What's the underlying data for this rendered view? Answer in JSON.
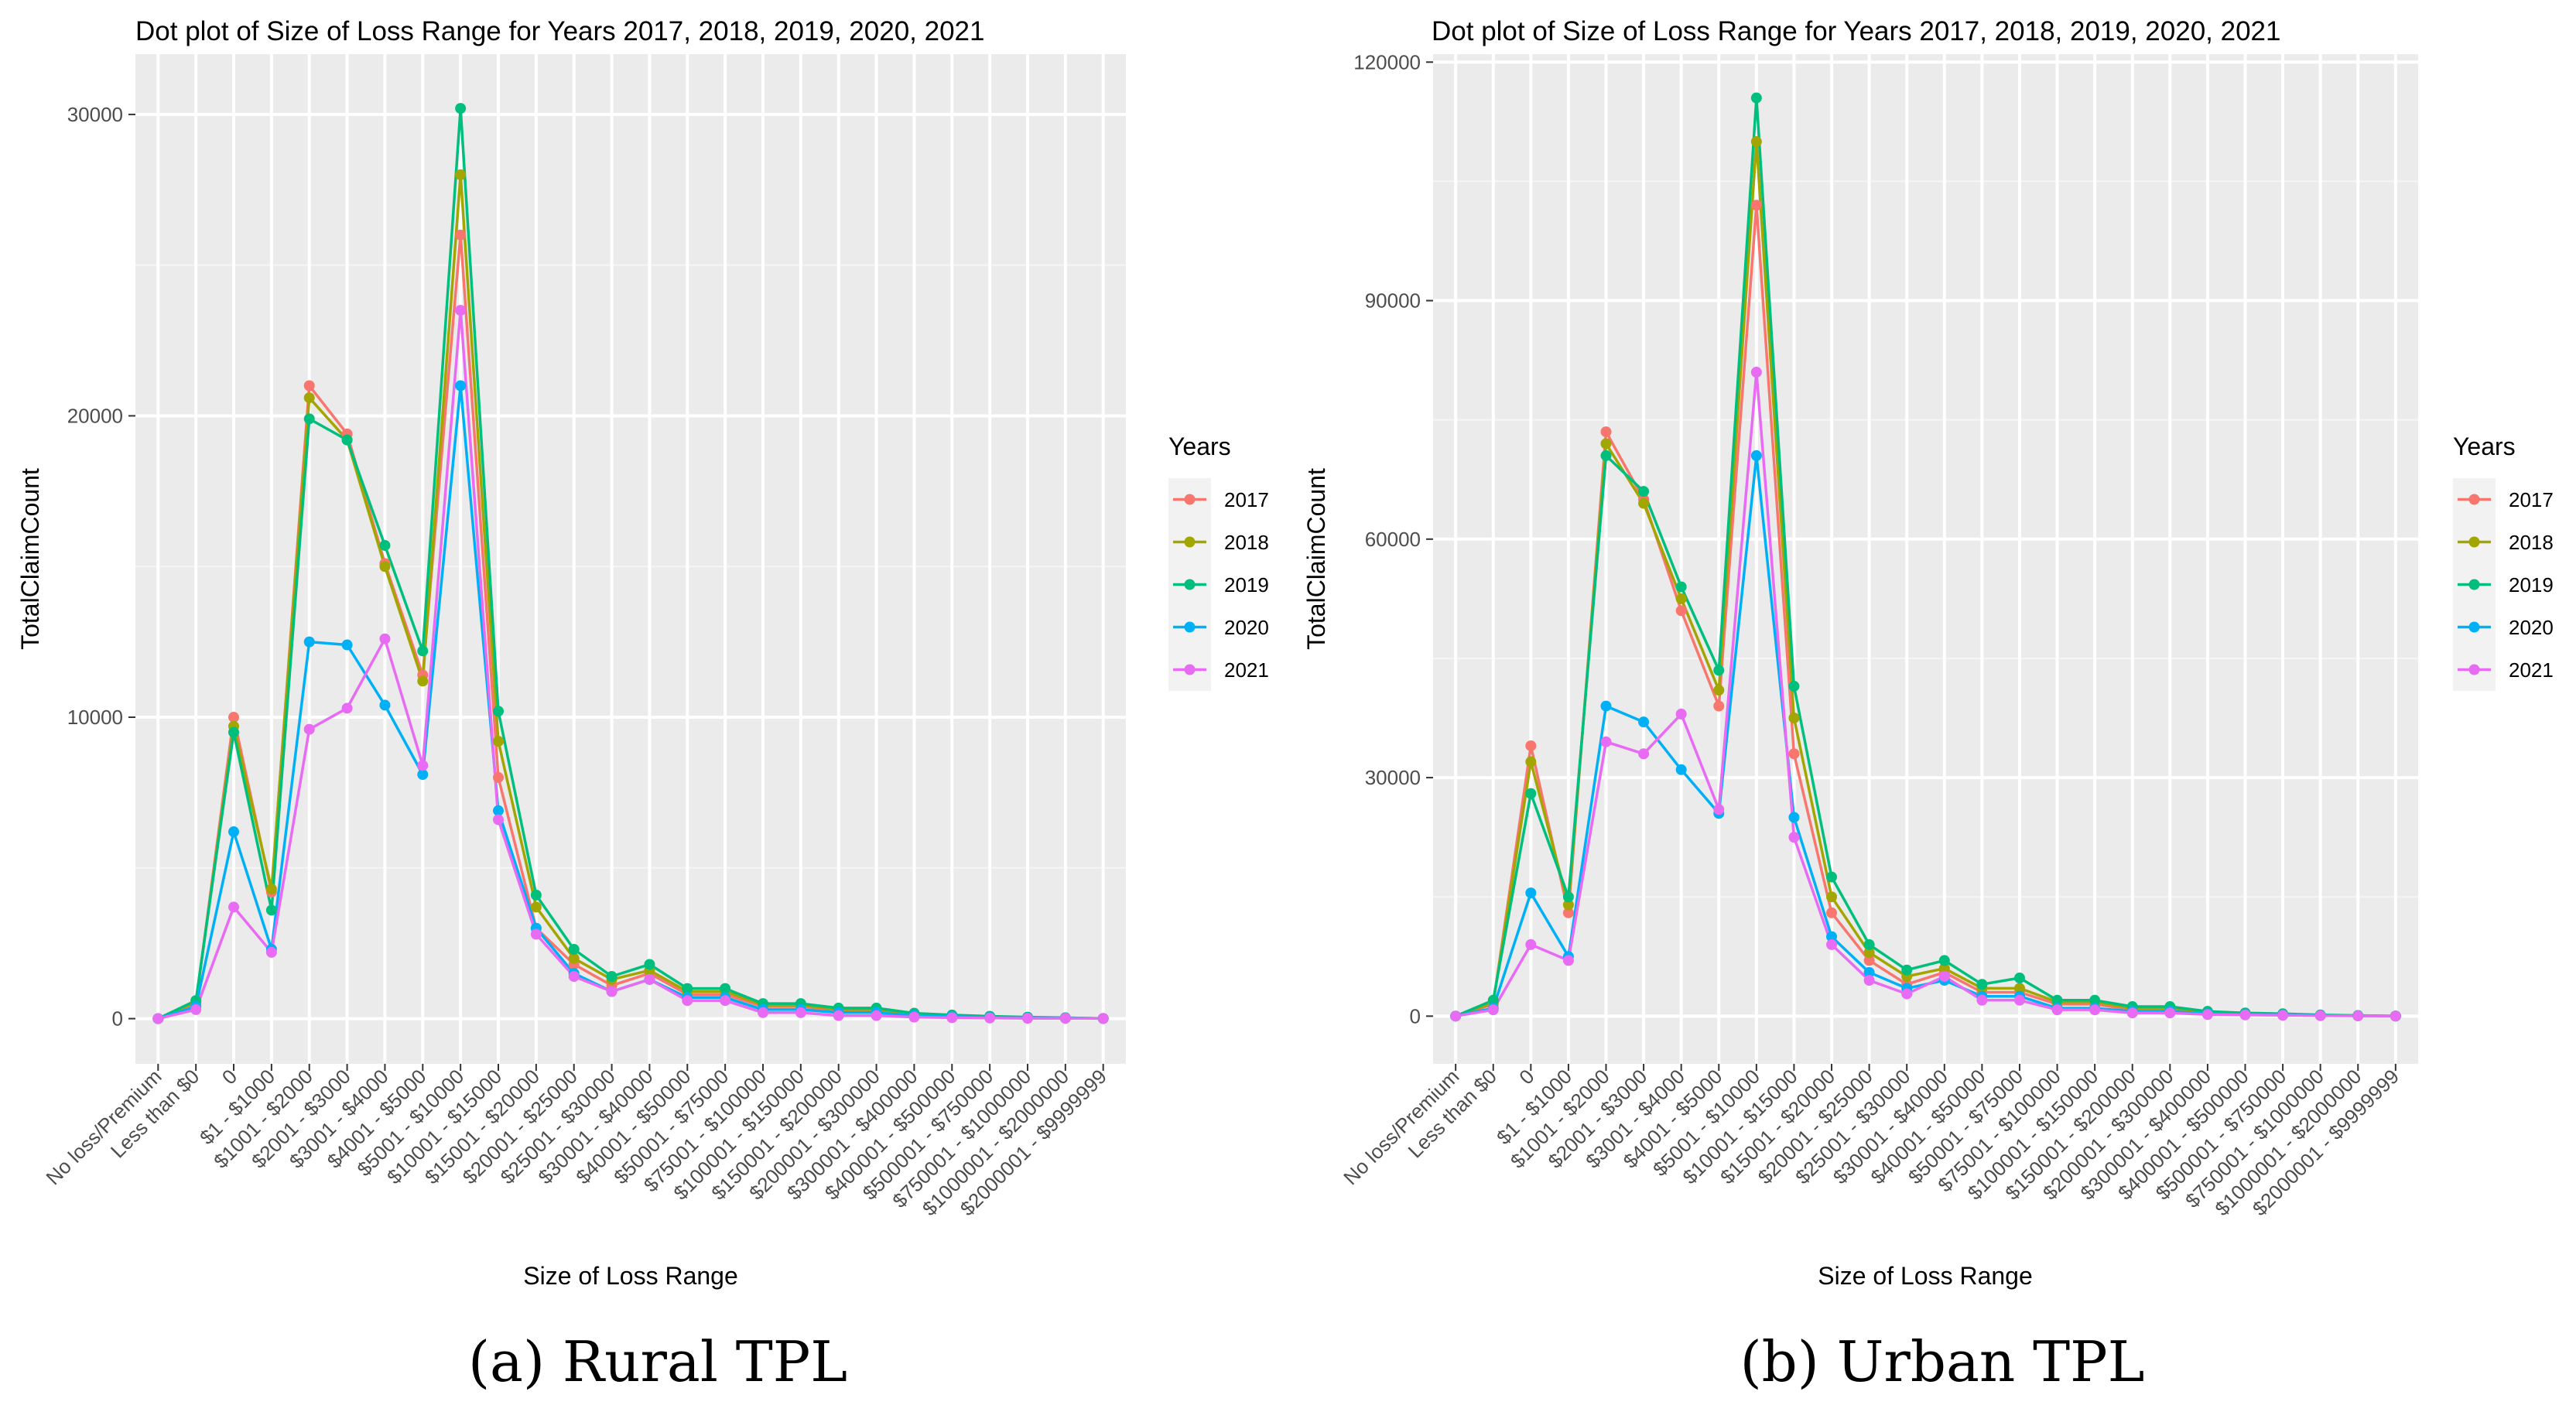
{
  "chart_data": [
    {
      "id": "rural",
      "type": "line",
      "title": "Dot plot of Size of Loss Range for Years 2017, 2018, 2019, 2020, 2021",
      "xlabel": "Size of Loss Range",
      "ylabel": "TotalClaimCount",
      "ylim": [
        -1500,
        32000
      ],
      "yticks": [
        0,
        10000,
        20000,
        30000
      ],
      "ytick_labels": [
        "0",
        "10000",
        "20000",
        "30000"
      ],
      "caption": "(a) Rural TPL",
      "legend_title": "Years",
      "legend_position": "right",
      "categories": [
        "No loss/Premium",
        "Less than $0",
        "0",
        "$1 - $1000",
        "$1001 - $2000",
        "$2001 - $3000",
        "$3001 - $4000",
        "$4001 - $5000",
        "$5001 - $10000",
        "$10001 - $15000",
        "$15001 - $20000",
        "$20001 - $25000",
        "$25001 - $30000",
        "$30001 - $40000",
        "$40001 - $50000",
        "$50001 - $75000",
        "$75001 - $100000",
        "$100001 - $150000",
        "$150001 - $200000",
        "$200001 - $300000",
        "$300001 - $400000",
        "$400001 - $500000",
        "$500001 - $750000",
        "$750001 - $1000000",
        "$1000001 - $2000000",
        "$2000001 - $9999999"
      ],
      "series": [
        {
          "name": "2017",
          "color": "#F8766D",
          "values": [
            0,
            500,
            10000,
            4200,
            21000,
            19400,
            15100,
            11400,
            26000,
            8000,
            3000,
            1800,
            1100,
            1500,
            800,
            800,
            400,
            400,
            250,
            250,
            120,
            80,
            50,
            30,
            20,
            5
          ]
        },
        {
          "name": "2018",
          "color": "#A3A500",
          "values": [
            0,
            550,
            9700,
            4300,
            20600,
            19200,
            15000,
            11200,
            28000,
            9200,
            3700,
            2000,
            1300,
            1600,
            900,
            900,
            450,
            450,
            300,
            300,
            140,
            100,
            60,
            40,
            25,
            5
          ]
        },
        {
          "name": "2019",
          "color": "#00BF7D",
          "values": [
            0,
            600,
            9500,
            3600,
            19900,
            19200,
            15700,
            12200,
            30200,
            10200,
            4100,
            2300,
            1400,
            1800,
            1000,
            1000,
            500,
            500,
            350,
            350,
            180,
            120,
            80,
            50,
            30,
            5
          ]
        },
        {
          "name": "2020",
          "color": "#00B0F6",
          "values": [
            0,
            400,
            6200,
            2300,
            12500,
            12400,
            10400,
            8100,
            21000,
            6900,
            3000,
            1500,
            900,
            1300,
            700,
            700,
            300,
            300,
            200,
            200,
            100,
            70,
            40,
            25,
            15,
            5
          ]
        },
        {
          "name": "2021",
          "color": "#E76BF3",
          "values": [
            0,
            300,
            3700,
            2200,
            9600,
            10300,
            12600,
            8400,
            23500,
            6600,
            2800,
            1400,
            900,
            1300,
            600,
            600,
            200,
            200,
            100,
            100,
            50,
            30,
            20,
            10,
            10,
            5
          ]
        }
      ]
    },
    {
      "id": "urban",
      "type": "line",
      "title": "Dot plot of Size of Loss Range for Years 2017, 2018, 2019, 2020, 2021",
      "xlabel": "Size of Loss Range",
      "ylabel": "TotalClaimCount",
      "ylim": [
        -6000,
        121000
      ],
      "yticks": [
        0,
        30000,
        60000,
        90000,
        120000
      ],
      "ytick_labels": [
        "0",
        "30000",
        "60000",
        "90000",
        "120000"
      ],
      "caption": "(b) Urban TPL",
      "legend_title": "Years",
      "legend_position": "right",
      "categories": [
        "No loss/Premium",
        "Less than $0",
        "0",
        "$1 - $1000",
        "$1001 - $2000",
        "$2001 - $3000",
        "$3001 - $4000",
        "$4001 - $5000",
        "$5001 - $10000",
        "$10001 - $15000",
        "$15001 - $20000",
        "$20001 - $25000",
        "$25001 - $30000",
        "$30001 - $40000",
        "$40001 - $50000",
        "$50001 - $75000",
        "$75001 - $100000",
        "$100001 - $150000",
        "$150001 - $200000",
        "$200001 - $300000",
        "$300001 - $400000",
        "$400001 - $500000",
        "$500001 - $750000",
        "$750001 - $1000000",
        "$1000001 - $2000000",
        "$2000001 - $9999999"
      ],
      "series": [
        {
          "name": "2017",
          "color": "#F8766D",
          "values": [
            0,
            1500,
            34000,
            13000,
            73500,
            65000,
            51000,
            39000,
            102000,
            33000,
            13000,
            7000,
            4000,
            5500,
            3000,
            3000,
            1500,
            1500,
            800,
            800,
            400,
            300,
            200,
            100,
            50,
            10
          ]
        },
        {
          "name": "2018",
          "color": "#A3A500",
          "values": [
            0,
            1700,
            32000,
            14000,
            72000,
            64500,
            52500,
            41000,
            110000,
            37500,
            15000,
            8000,
            5000,
            6000,
            3500,
            3500,
            1800,
            1800,
            1000,
            1000,
            500,
            350,
            250,
            120,
            60,
            10
          ]
        },
        {
          "name": "2019",
          "color": "#00BF7D",
          "values": [
            0,
            2000,
            28000,
            15000,
            70500,
            66000,
            54000,
            43500,
            115500,
            41500,
            17500,
            9000,
            5800,
            7000,
            4000,
            4800,
            2000,
            2000,
            1200,
            1200,
            600,
            400,
            300,
            150,
            80,
            10
          ]
        },
        {
          "name": "2020",
          "color": "#00B0F6",
          "values": [
            0,
            1000,
            15500,
            7500,
            39000,
            37000,
            31000,
            25500,
            70500,
            25000,
            10000,
            5500,
            3500,
            4500,
            2500,
            2500,
            1000,
            1000,
            600,
            600,
            300,
            200,
            150,
            80,
            40,
            10
          ]
        },
        {
          "name": "2021",
          "color": "#E76BF3",
          "values": [
            0,
            800,
            9000,
            7000,
            34500,
            33000,
            38000,
            26000,
            81000,
            22500,
            9000,
            4500,
            2800,
            5000,
            2000,
            2000,
            800,
            800,
            400,
            400,
            200,
            150,
            100,
            50,
            30,
            10
          ]
        }
      ]
    }
  ]
}
